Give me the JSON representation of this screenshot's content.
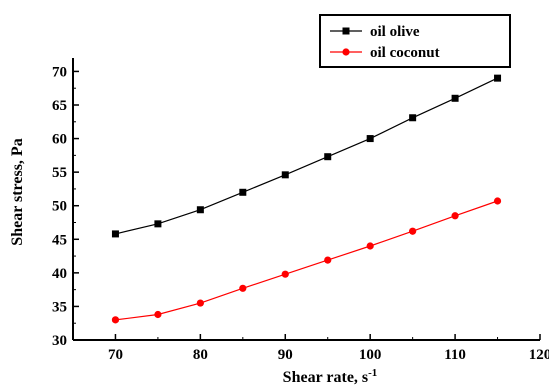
{
  "chart_data": {
    "type": "line",
    "xlabel": "Shear rate, s",
    "xlabel_superscript": "-1",
    "ylabel": "Shear stress, Pa",
    "xlim": [
      65,
      120
    ],
    "ylim": [
      30,
      72
    ],
    "x_ticks": [
      70,
      80,
      90,
      100,
      110,
      120
    ],
    "y_ticks": [
      30,
      35,
      40,
      45,
      50,
      55,
      60,
      65,
      70
    ],
    "grid": false,
    "legend_position": "top-right",
    "series": [
      {
        "name": "oil olive",
        "color": "#000000",
        "marker": "square",
        "x": [
          70,
          75,
          80,
          85,
          90,
          95,
          100,
          105,
          110,
          115
        ],
        "y": [
          45.8,
          47.3,
          49.4,
          52.0,
          54.6,
          57.3,
          60.0,
          63.1,
          66.0,
          69.0
        ]
      },
      {
        "name": "oil coconut",
        "color": "#ff0000",
        "marker": "circle",
        "x": [
          70,
          75,
          80,
          85,
          90,
          95,
          100,
          105,
          110,
          115
        ],
        "y": [
          33.0,
          33.8,
          35.5,
          37.7,
          39.8,
          41.9,
          44.0,
          46.2,
          48.5,
          50.7
        ]
      }
    ]
  }
}
